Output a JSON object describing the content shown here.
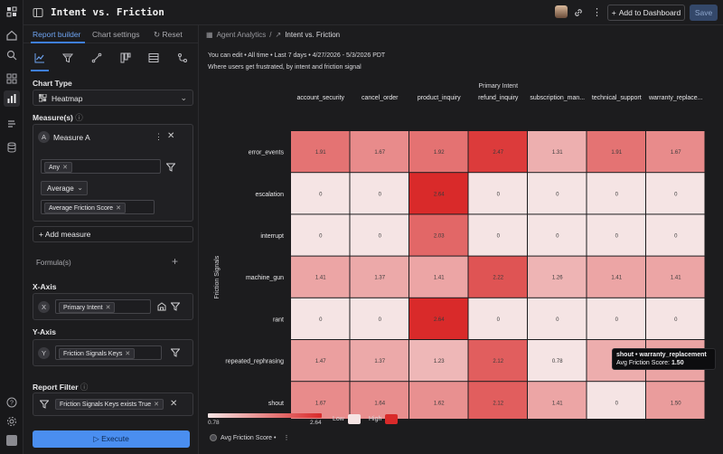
{
  "topbar": {
    "title": "Intent vs. Friction",
    "add_to_dashboard": "Add to Dashboard",
    "save": "Save"
  },
  "panel": {
    "tabs": [
      "Report builder",
      "Chart settings",
      "Reset"
    ],
    "chart_type_label": "Chart Type",
    "chart_type_value": "Heatmap",
    "measures_label": "Measure(s)",
    "measure_badge": "A",
    "measure_name": "Measure A",
    "filter_chip": "Any",
    "aggregation": "Average",
    "measure_field": "Average Friction Score",
    "add_measure": "+ Add measure",
    "formulas_label": "Formula(s)",
    "x_axis_label": "X-Axis",
    "x_badge": "X",
    "x_field": "Primary Intent",
    "y_axis_label": "Y-Axis",
    "y_badge": "Y",
    "y_field": "Friction Signals Keys",
    "report_filter_label": "Report Filter",
    "report_filter_chip": "Friction Signals Keys exists True",
    "execute": "▷ Execute"
  },
  "main": {
    "breadcrumb_root": "Agent Analytics",
    "breadcrumb_sep": "/",
    "breadcrumb_current": "Intent vs. Friction",
    "meta": "You can edit • All time • Last 7 days • 4/27/2026 - 5/3/2026 PDT",
    "subtitle": "Where users get frustrated, by intent and friction signal",
    "tooltip_title": "shout • warranty_replacement",
    "tooltip_metric": "Avg Friction Score:",
    "tooltip_value": "1.50",
    "legend_min": "0.78",
    "legend_max": "2.64",
    "low": "Low",
    "high": "High",
    "measure_legend": "Avg Friction Score •"
  },
  "colors": {
    "low": "#f5e4e4",
    "high": "#d92a2a",
    "accent": "#4a8ef0"
  },
  "chart_data": {
    "type": "heatmap",
    "xlabel": "Primary Intent",
    "ylabel": "Friction Signals",
    "x": [
      "account_security",
      "cancel_order",
      "product_inquiry",
      "refund_inquiry",
      "subscription_man...",
      "technical_support",
      "warranty_replace..."
    ],
    "y": [
      "error_events",
      "escalation",
      "interrupt",
      "machine_gun",
      "rant",
      "repeated_rephrasing",
      "shout"
    ],
    "values": [
      [
        1.91,
        1.67,
        1.92,
        2.47,
        1.31,
        1.91,
        1.67
      ],
      [
        0,
        0,
        2.64,
        0,
        0,
        0,
        0
      ],
      [
        0,
        0,
        2.03,
        0,
        0,
        0,
        0
      ],
      [
        1.41,
        1.37,
        1.41,
        2.22,
        1.26,
        1.41,
        1.41
      ],
      [
        0,
        0,
        2.64,
        0,
        0,
        0,
        0
      ],
      [
        1.47,
        1.37,
        1.23,
        2.12,
        0.78,
        1.33,
        1.42
      ],
      [
        1.67,
        1.64,
        1.62,
        2.12,
        1.41,
        0,
        1.5
      ]
    ],
    "value_range": [
      0.78,
      2.64
    ],
    "colorscale": [
      "#f5e4e4",
      "#d92a2a"
    ],
    "legend": "Low / High"
  }
}
